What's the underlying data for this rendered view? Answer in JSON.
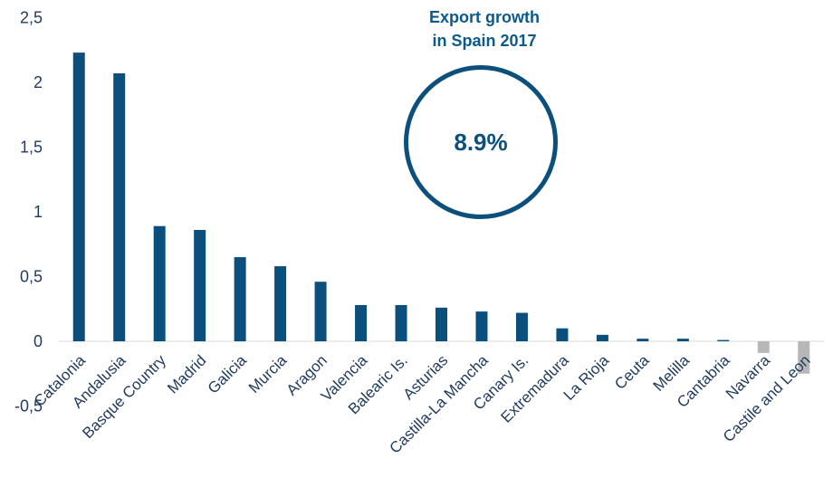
{
  "chart_data": {
    "type": "bar",
    "categories": [
      "Catalonia",
      "Andalusia",
      "Basque Country",
      "Madrid",
      "Galicia",
      "Murcia",
      "Aragon",
      "Valencia",
      "Balearic Is.",
      "Asturias",
      "Castilla-La Mancha",
      "Canary Is.",
      "Extremadura",
      "La Rioja",
      "Ceuta",
      "Melilla",
      "Cantabria",
      "Navarra",
      "Castile and Leon"
    ],
    "values": [
      2.23,
      2.07,
      0.89,
      0.86,
      0.65,
      0.58,
      0.46,
      0.28,
      0.28,
      0.26,
      0.23,
      0.22,
      0.1,
      0.05,
      0.02,
      0.02,
      0.01,
      -0.09,
      -0.25
    ],
    "ylim": [
      -0.5,
      2.5
    ],
    "yticks": [
      "-0,5",
      "0",
      "0,5",
      "1",
      "1,5",
      "2",
      "2,5"
    ],
    "ytick_values": [
      -0.5,
      0,
      0.5,
      1,
      1.5,
      2,
      2.5
    ],
    "colors": {
      "positive": "#0b4f7c",
      "negative": "#b7b7b7"
    },
    "xlabel": "",
    "ylabel": "",
    "title": "",
    "grid": false
  },
  "callout": {
    "line1": "Export growth",
    "line2": "in Spain 2017",
    "value": "8.9%"
  }
}
